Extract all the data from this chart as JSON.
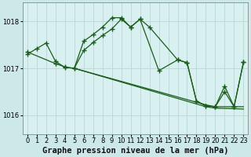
{
  "title": "Graphe pression niveau de la mer (hPa)",
  "background_color": "#cce8e8",
  "plot_bg_color": "#d8f0f0",
  "grid_color": "#b8d8d8",
  "line_color": "#1a5c1a",
  "ylim": [
    1015.6,
    1018.4
  ],
  "xlim": [
    -0.5,
    23.5
  ],
  "yticks": [
    1016,
    1017,
    1018
  ],
  "xticks": [
    0,
    1,
    2,
    3,
    4,
    5,
    6,
    7,
    8,
    9,
    10,
    11,
    12,
    13,
    14,
    15,
    16,
    17,
    18,
    19,
    20,
    21,
    22,
    23
  ],
  "series1_x": [
    0,
    1,
    2,
    3,
    4,
    5,
    6,
    7,
    8,
    9,
    10,
    11,
    12,
    13,
    16,
    17,
    18,
    19,
    20,
    21,
    22,
    23
  ],
  "series1_y": [
    1017.3,
    1017.42,
    1017.54,
    1017.15,
    1017.02,
    1017.0,
    1017.38,
    1017.55,
    1017.7,
    1017.84,
    1018.05,
    1017.88,
    1018.05,
    1017.88,
    1017.18,
    1017.12,
    1016.3,
    1016.2,
    1016.18,
    1016.5,
    1016.18,
    1017.13
  ],
  "series2_x": [
    0,
    3,
    4,
    5,
    6,
    7,
    8,
    9,
    10,
    11,
    12,
    14,
    16,
    17,
    18,
    19,
    20,
    21,
    22,
    23
  ],
  "series2_y": [
    1017.35,
    1017.1,
    1017.03,
    1017.0,
    1017.58,
    1017.72,
    1017.88,
    1018.08,
    1018.08,
    1017.88,
    1018.05,
    1016.95,
    1017.18,
    1017.12,
    1016.3,
    1016.2,
    1016.18,
    1016.62,
    1016.18,
    1017.13
  ],
  "series3_x": [
    5,
    19,
    20,
    23
  ],
  "series3_y": [
    1017.0,
    1016.22,
    1016.18,
    1016.18
  ],
  "series4_x": [
    5,
    19,
    20,
    23
  ],
  "series4_y": [
    1017.0,
    1016.18,
    1016.15,
    1016.13
  ],
  "tick_fontsize": 6,
  "label_fontsize": 7.5
}
